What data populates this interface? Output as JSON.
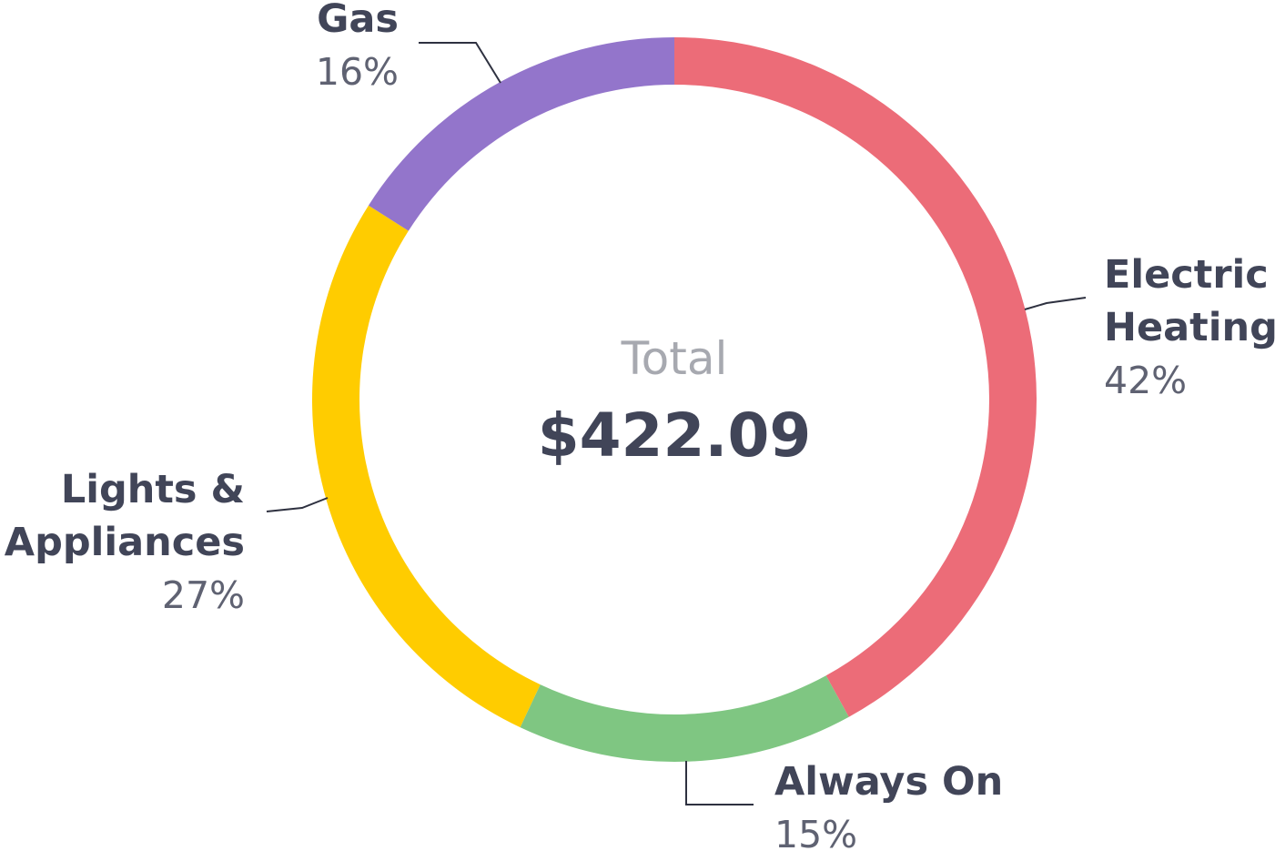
{
  "chart_data": {
    "type": "pie",
    "variant": "donut",
    "center": {
      "caption": "Total",
      "value": "$422.09"
    },
    "slices": [
      {
        "name_lines": [
          "Electric",
          "Heating"
        ],
        "value": 42,
        "label": "42%",
        "color": "#EC6C78"
      },
      {
        "name_lines": [
          "Always On"
        ],
        "value": 15,
        "label": "15%",
        "color": "#7FC682"
      },
      {
        "name_lines": [
          "Lights &",
          "Appliances"
        ],
        "value": 27,
        "label": "27%",
        "color": "#FFCC00"
      },
      {
        "name_lines": [
          "Gas"
        ],
        "value": 16,
        "label": "16%",
        "color": "#9375CB"
      }
    ],
    "start_angle_deg": 0,
    "direction": "clockwise",
    "legend": "none"
  }
}
